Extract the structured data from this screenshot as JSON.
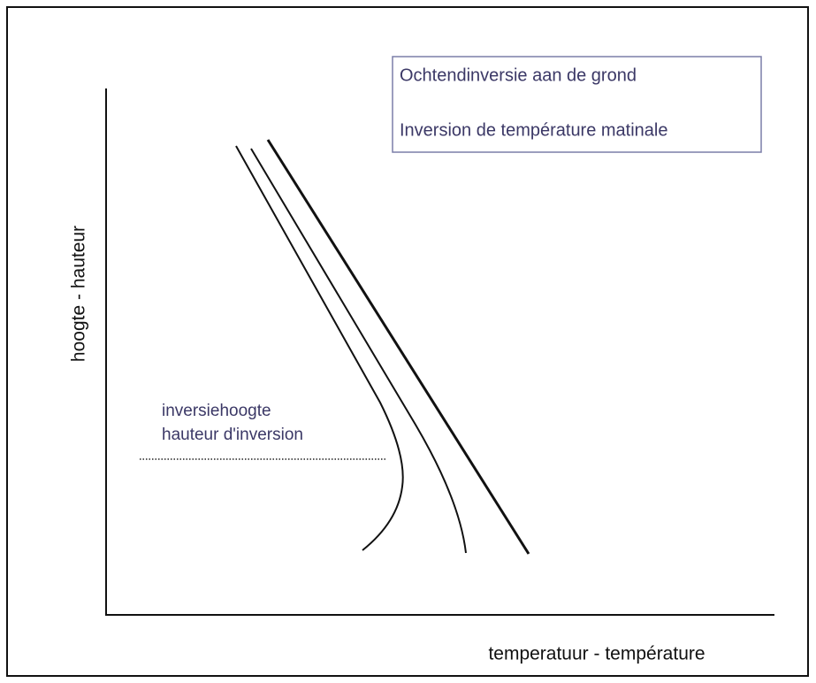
{
  "legend": {
    "lines": [
      "Ochtendinversie aan de grond",
      "Inversion de température matinale"
    ]
  },
  "annotation": {
    "lines": [
      "inversiehoogte",
      "hauteur d'inversion"
    ]
  },
  "axes": {
    "y_label": "hoogte - hauteur",
    "x_label": "temperatuur - température"
  }
}
